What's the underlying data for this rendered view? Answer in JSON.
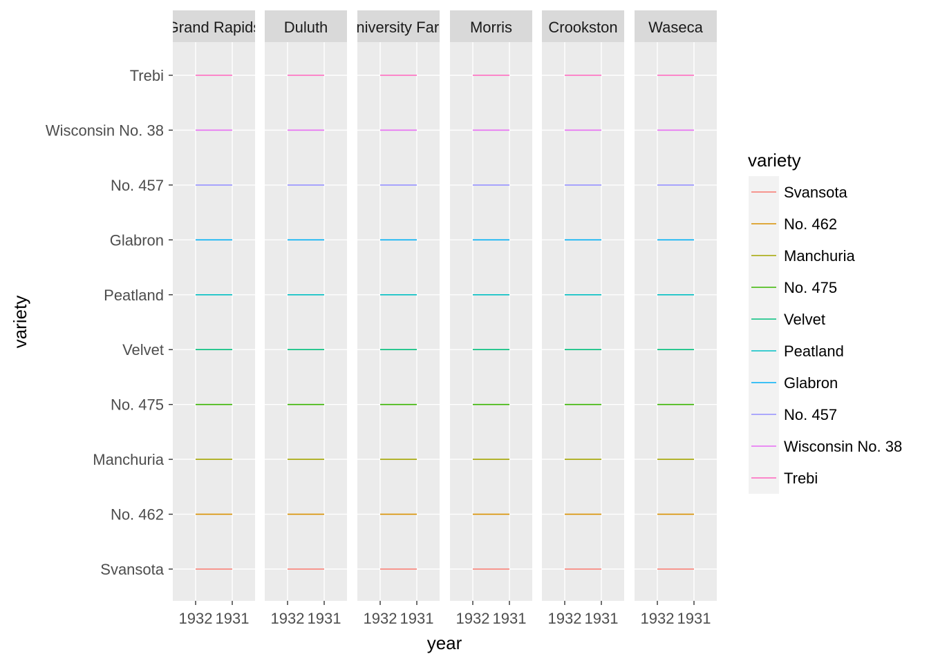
{
  "chart_data": {
    "type": "line",
    "xlabel": "year",
    "ylabel": "variety",
    "x_categories": [
      "1932",
      "1931"
    ],
    "y_categories": [
      "Svansota",
      "No. 462",
      "Manchuria",
      "No. 475",
      "Velvet",
      "Peatland",
      "Glabron",
      "No. 457",
      "Wisconsin No. 38",
      "Trebi"
    ],
    "panels": [
      "Grand Rapids",
      "Duluth",
      "University Farm",
      "Morris",
      "Crookston",
      "Waseca"
    ],
    "legend": {
      "title": "variety",
      "placement": "right",
      "items": [
        "Svansota",
        "No. 462",
        "Manchuria",
        "No. 475",
        "Velvet",
        "Peatland",
        "Glabron",
        "No. 457",
        "Wisconsin No. 38",
        "Trebi"
      ]
    },
    "colors": {
      "Svansota": "#F8766D",
      "No. 462": "#D89000",
      "Manchuria": "#A3A500",
      "No. 475": "#39B600",
      "Velvet": "#00BF7D",
      "Peatland": "#00BFC4",
      "Glabron": "#00B0F6",
      "No. 457": "#9590FF",
      "Wisconsin No. 38": "#E76BF3",
      "Trebi": "#FF62BC"
    },
    "grid": true,
    "panel_background": "#EBEBEB",
    "strip_background": "#D9D9D9"
  }
}
